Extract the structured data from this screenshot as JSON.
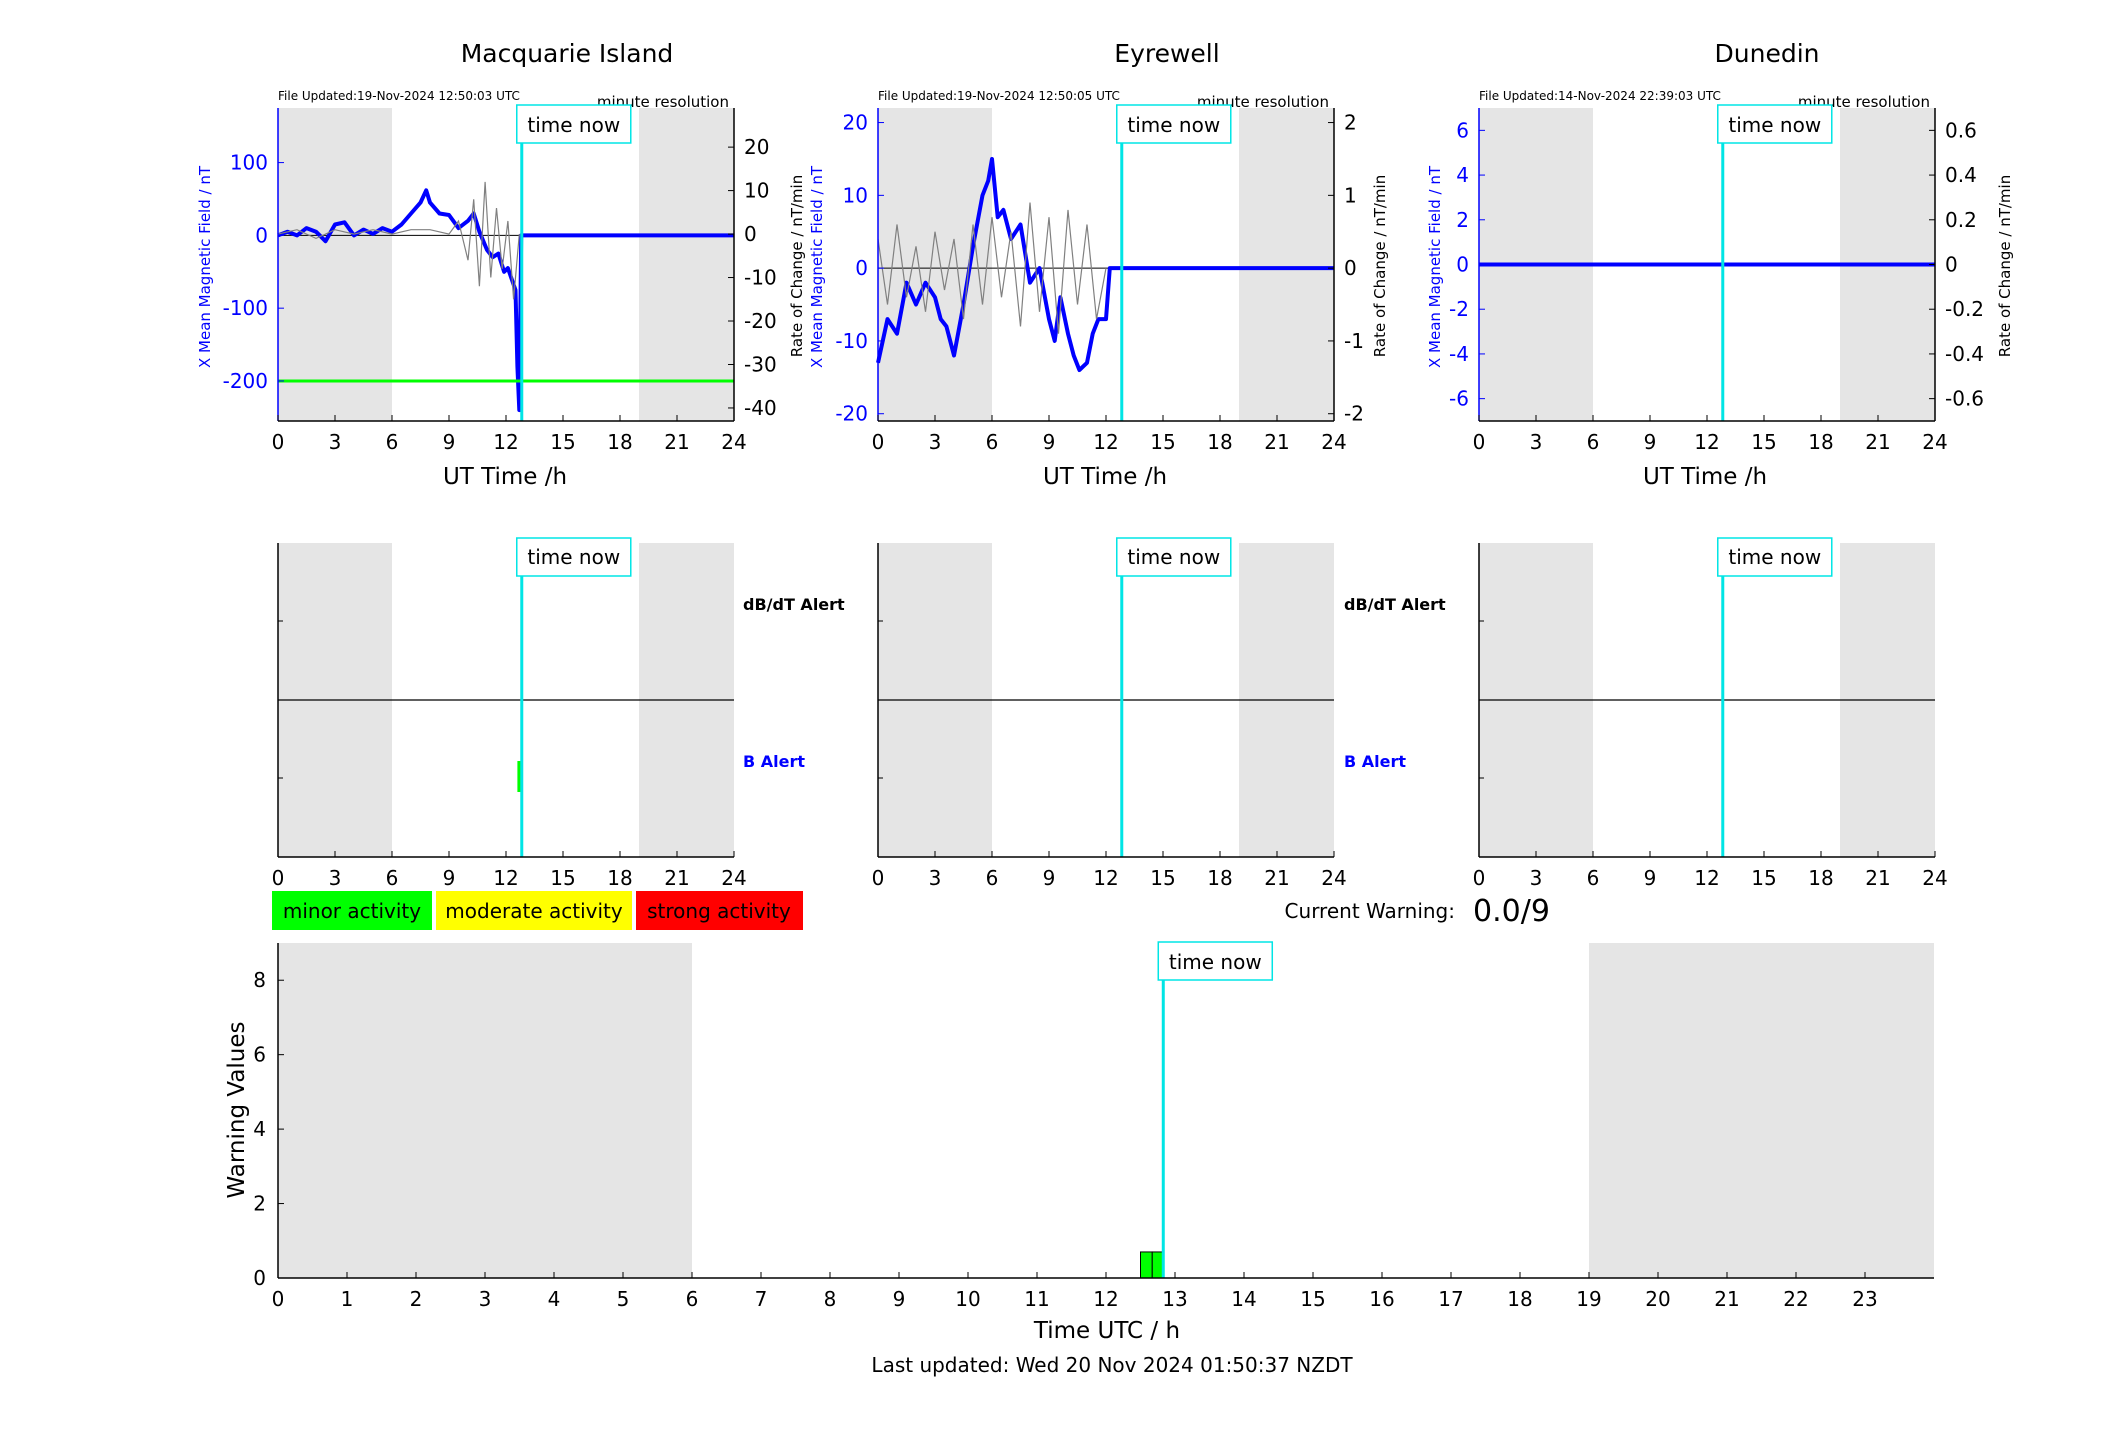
{
  "page": {
    "last_updated": "Last updated: Wed 20 Nov 2024 01:50:37 NZDT"
  },
  "colors": {
    "field": "#0000ff",
    "rate": "#808080",
    "now": "#00e5e5",
    "night_shade": "#e5e5e5",
    "threshold": "#00ff00",
    "minor": "#00ff00",
    "moderate": "#ffff00",
    "strong": "#ff0000"
  },
  "labels": {
    "time_now": "time now",
    "resolution": "minute resolution",
    "y_left": "X Mean Magnetic Field / nT",
    "y_right": "Rate of Change / nT/min",
    "x_top": "UT Time /h",
    "dbdt_alert": "dB/dT Alert",
    "b_alert": "B Alert"
  },
  "stations": [
    {
      "name": "Macquarie Island",
      "file_updated": "File Updated:19-Nov-2024 12:50:03 UTC",
      "left_ylim": [
        -255,
        175
      ],
      "left_ticks": [
        -200,
        -100,
        0,
        100
      ],
      "right_ylim": [
        -43,
        29
      ],
      "right_ticks": [
        -40,
        -30,
        -20,
        -10,
        0,
        10,
        20
      ],
      "threshold_nT": -200,
      "b_alert_bar": [
        12.6,
        12.8
      ]
    },
    {
      "name": "Eyrewell",
      "file_updated": "File Updated:19-Nov-2024 12:50:05 UTC",
      "left_ylim": [
        -21,
        22
      ],
      "left_ticks": [
        -20,
        -10,
        0,
        10,
        20
      ],
      "right_ylim": [
        -2.1,
        2.2
      ],
      "right_ticks": [
        -2,
        -1,
        0,
        1,
        2
      ],
      "threshold_nT": null,
      "b_alert_bar": null
    },
    {
      "name": "Dunedin",
      "file_updated": "File Updated:14-Nov-2024 22:39:03 UTC",
      "left_ylim": [
        -7,
        7
      ],
      "left_ticks": [
        -6,
        -4,
        -2,
        0,
        2,
        4,
        6
      ],
      "right_ylim": [
        -0.7,
        0.7
      ],
      "right_ticks": [
        -0.6,
        -0.4,
        -0.2,
        0,
        0.2,
        0.4,
        0.6
      ],
      "threshold_nT": null,
      "b_alert_bar": null
    }
  ],
  "activity_legend": {
    "minor": "minor activity",
    "moderate": "moderate activity",
    "strong": "strong activity"
  },
  "current_warning": {
    "label": "Current Warning:",
    "value": "0.0/9"
  },
  "chart_data": [
    {
      "type": "line",
      "title": "Macquarie Island",
      "xlabel": "UT Time /h",
      "xlim": [
        0,
        24
      ],
      "xticks": [
        0,
        3,
        6,
        9,
        12,
        15,
        18,
        21,
        24
      ],
      "ylabel": "X Mean Magnetic Field / nT",
      "ylim": [
        -255,
        175
      ],
      "ylabel_right": "Rate of Change / nT/min",
      "ylim_right": [
        -43,
        29
      ],
      "night_shading_h": [
        [
          0,
          6
        ],
        [
          19,
          24
        ]
      ],
      "time_now_h": 12.83,
      "series": [
        {
          "axis": "left",
          "x": [
            0,
            0.5,
            1,
            1.5,
            2,
            2.5,
            3,
            3.5,
            4,
            4.5,
            5,
            5.5,
            6,
            6.5,
            7,
            7.5,
            7.8,
            8,
            8.5,
            9,
            9.5,
            10,
            10.3,
            10.6,
            11,
            11.3,
            11.6,
            11.9,
            12.1,
            12.3,
            12.5,
            12.6,
            12.7,
            12.8,
            13,
            14,
            16,
            18,
            20,
            22,
            24
          ],
          "y": [
            0,
            5,
            0,
            10,
            5,
            -8,
            15,
            18,
            0,
            8,
            2,
            10,
            5,
            15,
            30,
            45,
            62,
            45,
            30,
            28,
            10,
            20,
            30,
            5,
            -20,
            -30,
            -25,
            -50,
            -45,
            -60,
            -75,
            -180,
            -240,
            0,
            0,
            0,
            0,
            0,
            0,
            0,
            0
          ]
        },
        {
          "axis": "right",
          "x": [
            0,
            1,
            2,
            3,
            4,
            5,
            6,
            7,
            8,
            9,
            9.5,
            10,
            10.3,
            10.6,
            10.9,
            11.2,
            11.5,
            11.8,
            12.1,
            12.4,
            12.7
          ],
          "y": [
            0,
            1,
            -1,
            1,
            0,
            1,
            0,
            1,
            1,
            0,
            3,
            -6,
            8,
            -12,
            12,
            -10,
            6,
            -8,
            3,
            -15,
            0
          ]
        }
      ]
    },
    {
      "type": "line",
      "title": "Eyrewell",
      "xlabel": "UT Time /h",
      "xlim": [
        0,
        24
      ],
      "xticks": [
        0,
        3,
        6,
        9,
        12,
        15,
        18,
        21,
        24
      ],
      "ylabel": "X Mean Magnetic Field / nT",
      "ylim": [
        -21,
        22
      ],
      "ylabel_right": "Rate of Change / nT/min",
      "ylim_right": [
        -2.1,
        2.2
      ],
      "night_shading_h": [
        [
          0,
          6
        ],
        [
          19,
          24
        ]
      ],
      "time_now_h": 12.83,
      "series": [
        {
          "axis": "left",
          "x": [
            0,
            0.5,
            1,
            1.5,
            2,
            2.5,
            3,
            3.3,
            3.6,
            4,
            4.5,
            5,
            5.5,
            5.8,
            6,
            6.3,
            6.6,
            7,
            7.5,
            8,
            8.5,
            9,
            9.3,
            9.6,
            10,
            10.3,
            10.6,
            11,
            11.3,
            11.6,
            12,
            12.2,
            13,
            16,
            20,
            24
          ],
          "y": [
            -13,
            -7,
            -9,
            -2,
            -5,
            -2,
            -4,
            -7,
            -8,
            -12,
            -5,
            3,
            10,
            12,
            15,
            7,
            8,
            4,
            6,
            -2,
            0,
            -7,
            -10,
            -4,
            -9,
            -12,
            -14,
            -13,
            -9,
            -7,
            -7,
            0,
            0,
            0,
            0,
            0
          ]
        },
        {
          "axis": "right",
          "x": [
            0,
            0.5,
            1,
            1.5,
            2,
            2.5,
            3,
            3.5,
            4,
            4.5,
            5,
            5.5,
            6,
            6.5,
            7,
            7.5,
            8,
            8.5,
            9,
            9.5,
            10,
            10.5,
            11,
            11.5,
            12
          ],
          "y": [
            0.4,
            -0.5,
            0.6,
            -0.4,
            0.3,
            -0.6,
            0.5,
            -0.3,
            0.4,
            -0.7,
            0.6,
            -0.5,
            0.7,
            -0.4,
            0.5,
            -0.8,
            0.9,
            -0.6,
            0.7,
            -0.9,
            0.8,
            -0.5,
            0.6,
            -0.7,
            0
          ]
        }
      ]
    },
    {
      "type": "line",
      "title": "Dunedin",
      "xlabel": "UT Time /h",
      "xlim": [
        0,
        24
      ],
      "xticks": [
        0,
        3,
        6,
        9,
        12,
        15,
        18,
        21,
        24
      ],
      "ylabel": "X Mean Magnetic Field / nT",
      "ylim": [
        -7,
        7
      ],
      "ylabel_right": "Rate of Change / nT/min",
      "ylim_right": [
        -0.7,
        0.7
      ],
      "night_shading_h": [
        [
          0,
          6
        ],
        [
          19,
          24
        ]
      ],
      "time_now_h": 12.83,
      "series": [
        {
          "axis": "left",
          "x": [
            0,
            24
          ],
          "y": [
            0,
            0
          ]
        }
      ]
    },
    {
      "type": "bar",
      "xlabel": "Time UTC / h",
      "ylabel": "Warning Values",
      "xlim": [
        0,
        24
      ],
      "xticks": [
        0,
        1,
        2,
        3,
        4,
        5,
        6,
        7,
        8,
        9,
        10,
        11,
        12,
        13,
        14,
        15,
        16,
        17,
        18,
        19,
        20,
        21,
        22,
        23
      ],
      "ylim": [
        0,
        9
      ],
      "yticks": [
        0,
        2,
        4,
        6,
        8
      ],
      "night_shading_h": [
        [
          0,
          6
        ],
        [
          19,
          24
        ]
      ],
      "time_now_h": 12.83,
      "bars": [
        {
          "x0": 12.5,
          "x1": 12.67,
          "value": 0.7
        },
        {
          "x0": 12.67,
          "x1": 12.83,
          "value": 0.7
        }
      ]
    }
  ]
}
